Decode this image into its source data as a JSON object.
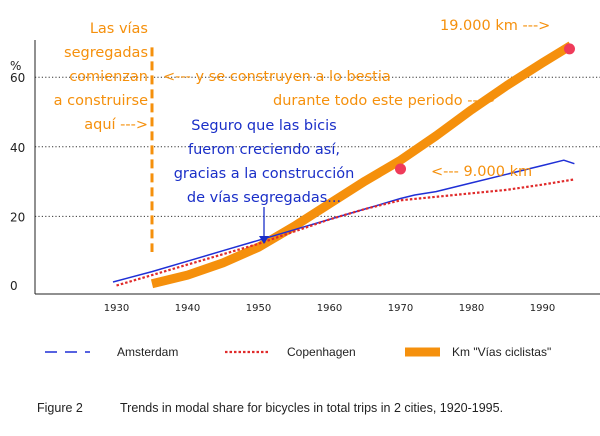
{
  "chart_data": {
    "type": "line",
    "y_unit": "%",
    "xlim": [
      1920,
      1995
    ],
    "ylim": [
      0,
      70
    ],
    "x_ticks": [
      1930,
      1940,
      1950,
      1960,
      1970,
      1980,
      1990
    ],
    "y_ticks": [
      0,
      20,
      40,
      60
    ],
    "gridlines_y": [
      20,
      40,
      60
    ],
    "series": [
      {
        "name": "Amsterdam",
        "style": "dashed",
        "color": "#1f2fd6",
        "x": [
          1929.5,
          1935,
          1940,
          1945,
          1950,
          1955,
          1960,
          1965,
          1970,
          1972,
          1975,
          1980,
          1985,
          1990,
          1993,
          1994.5
        ],
        "y": [
          2,
          5,
          8,
          11,
          14,
          17,
          20,
          23,
          26,
          27,
          28,
          30.5,
          33,
          35.5,
          37,
          36
        ]
      },
      {
        "name": "Copenhagen",
        "style": "dotted",
        "color": "#e02a2a",
        "x": [
          1930,
          1935,
          1940,
          1945,
          1950,
          1955,
          1960,
          1965,
          1970,
          1975,
          1980,
          1985,
          1990,
          1994.5
        ],
        "y": [
          1,
          4,
          7,
          10,
          13,
          16.5,
          20,
          23,
          25.5,
          26.5,
          27.5,
          28.5,
          30,
          31.5
        ]
      },
      {
        "name": "Km \"Vías ciclistas\"",
        "style": "thick",
        "color": "#f5900c",
        "x": [
          1935,
          1940,
          1945,
          1950,
          1955,
          1960,
          1965,
          1970,
          1975,
          1980,
          1985,
          1990,
          1994
        ],
        "y": [
          1.5,
          4,
          7.5,
          12,
          18,
          24.5,
          31,
          37,
          44,
          51.5,
          58.5,
          65,
          70
        ]
      }
    ],
    "markers": [
      {
        "x": 1970,
        "y": 34.5,
        "color": "#ef3b5a"
      },
      {
        "x": 1993.8,
        "y": 69,
        "color": "#ef3b5a"
      }
    ],
    "vline": {
      "x": 1935,
      "y_range": [
        12,
        70
      ],
      "color": "#f5900c"
    },
    "annotations": {
      "left_note": [
        "Las vías",
        "segregadas",
        "comienzan",
        "a construirse",
        "aquí --->"
      ],
      "top_note": [
        "19.000 km --->"
      ],
      "middle_note": [
        "<--- y se construyen a lo bestia",
        "durante todo este periodo --->"
      ],
      "nine_k_note": [
        "<--- 9.000 km"
      ],
      "blue_note": [
        "Seguro que las bicis",
        "fueron creciendo así,",
        "gracias a la construcción",
        "de vías segregadas..."
      ]
    },
    "caption": {
      "label": "Figure 2",
      "text": "Trends in modal share for bicycles in total trips in 2 cities, 1920-1995."
    }
  }
}
